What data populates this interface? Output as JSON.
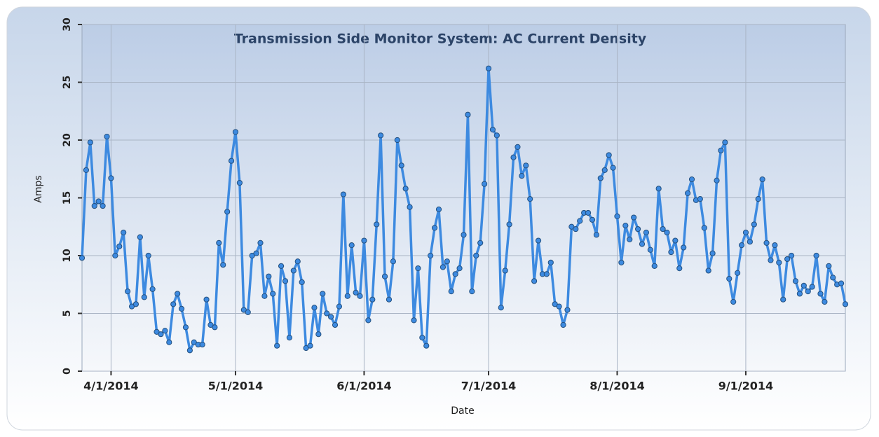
{
  "chart_data": {
    "type": "line",
    "title": "Transmission Side Monitor System: AC Current Density",
    "xlabel": "Date",
    "ylabel": "Amps",
    "color": "#3d8ae0",
    "grid": true,
    "xlim": [
      "3/25/2014",
      "9/25/2014"
    ],
    "xticks": [
      "4/1/2014",
      "5/1/2014",
      "6/1/2014",
      "7/1/2014",
      "8/1/2014",
      "9/1/2014"
    ],
    "ylim": [
      0,
      30
    ],
    "yticks": [
      0,
      5,
      10,
      15,
      20,
      25,
      30
    ],
    "x": [
      "3/25/2014",
      "3/26/2014",
      "3/27/2014",
      "3/28/2014",
      "3/29/2014",
      "3/30/2014",
      "3/31/2014",
      "4/1/2014",
      "4/2/2014",
      "4/3/2014",
      "4/4/2014",
      "4/5/2014",
      "4/6/2014",
      "4/7/2014",
      "4/8/2014",
      "4/9/2014",
      "4/10/2014",
      "4/11/2014",
      "4/12/2014",
      "4/13/2014",
      "4/14/2014",
      "4/15/2014",
      "4/16/2014",
      "4/17/2014",
      "4/18/2014",
      "4/19/2014",
      "4/20/2014",
      "4/21/2014",
      "4/22/2014",
      "4/23/2014",
      "4/24/2014",
      "4/25/2014",
      "4/26/2014",
      "4/27/2014",
      "4/28/2014",
      "4/29/2014",
      "4/30/2014",
      "5/1/2014",
      "5/2/2014",
      "5/3/2014",
      "5/4/2014",
      "5/5/2014",
      "5/6/2014",
      "5/7/2014",
      "5/8/2014",
      "5/9/2014",
      "5/10/2014",
      "5/11/2014",
      "5/12/2014",
      "5/13/2014",
      "5/14/2014",
      "5/15/2014",
      "5/16/2014",
      "5/17/2014",
      "5/18/2014",
      "5/19/2014",
      "5/20/2014",
      "5/21/2014",
      "5/22/2014",
      "5/23/2014",
      "5/24/2014",
      "5/25/2014",
      "5/26/2014",
      "5/27/2014",
      "5/28/2014",
      "5/29/2014",
      "5/30/2014",
      "5/31/2014",
      "6/1/2014",
      "6/2/2014",
      "6/3/2014",
      "6/4/2014",
      "6/5/2014",
      "6/6/2014",
      "6/7/2014",
      "6/8/2014",
      "6/9/2014",
      "6/10/2014",
      "6/11/2014",
      "6/12/2014",
      "6/13/2014",
      "6/14/2014",
      "6/15/2014",
      "6/16/2014",
      "6/17/2014",
      "6/18/2014",
      "6/19/2014",
      "6/20/2014",
      "6/21/2014",
      "6/22/2014",
      "6/23/2014",
      "6/24/2014",
      "6/25/2014",
      "6/26/2014",
      "6/27/2014",
      "6/28/2014",
      "6/29/2014",
      "6/30/2014",
      "7/1/2014",
      "7/2/2014",
      "7/3/2014",
      "7/4/2014",
      "7/5/2014",
      "7/6/2014",
      "7/7/2014",
      "7/8/2014",
      "7/9/2014",
      "7/10/2014",
      "7/11/2014",
      "7/12/2014",
      "7/13/2014",
      "7/14/2014",
      "7/15/2014",
      "7/16/2014",
      "7/17/2014",
      "7/18/2014",
      "7/19/2014",
      "7/20/2014",
      "7/21/2014",
      "7/22/2014",
      "7/23/2014",
      "7/24/2014",
      "7/25/2014",
      "7/26/2014",
      "7/27/2014",
      "7/28/2014",
      "7/29/2014",
      "7/30/2014",
      "7/31/2014",
      "8/1/2014",
      "8/2/2014",
      "8/3/2014",
      "8/4/2014",
      "8/5/2014",
      "8/6/2014",
      "8/7/2014",
      "8/8/2014",
      "8/9/2014",
      "8/10/2014",
      "8/11/2014",
      "8/12/2014",
      "8/13/2014",
      "8/14/2014",
      "8/15/2014",
      "8/16/2014",
      "8/17/2014",
      "8/18/2014",
      "8/19/2014",
      "8/20/2014",
      "8/21/2014",
      "8/22/2014",
      "8/23/2014",
      "8/24/2014",
      "8/25/2014",
      "8/26/2014",
      "8/27/2014",
      "8/28/2014",
      "8/29/2014",
      "8/30/2014",
      "8/31/2014",
      "9/1/2014",
      "9/2/2014",
      "9/3/2014",
      "9/4/2014",
      "9/5/2014",
      "9/6/2014",
      "9/7/2014",
      "9/8/2014",
      "9/9/2014",
      "9/10/2014",
      "9/11/2014",
      "9/12/2014",
      "9/13/2014",
      "9/14/2014",
      "9/15/2014",
      "9/16/2014",
      "9/17/2014",
      "9/18/2014",
      "9/19/2014",
      "9/20/2014",
      "9/21/2014",
      "9/22/2014",
      "9/23/2014",
      "9/24/2014",
      "9/25/2014"
    ],
    "values": [
      9.8,
      17.4,
      19.8,
      14.3,
      14.7,
      14.3,
      20.3,
      16.7,
      10.0,
      10.8,
      12.0,
      6.9,
      5.6,
      5.8,
      11.6,
      6.4,
      10.0,
      7.1,
      3.4,
      3.2,
      3.5,
      2.5,
      5.8,
      6.7,
      5.4,
      3.8,
      1.8,
      2.5,
      2.3,
      2.3,
      6.2,
      4.0,
      3.8,
      11.1,
      9.2,
      13.8,
      18.2,
      20.7,
      16.3,
      5.3,
      5.1,
      10.0,
      10.2,
      11.1,
      6.5,
      8.2,
      6.7,
      2.2,
      9.1,
      7.8,
      2.9,
      8.7,
      9.5,
      7.7,
      2.0,
      2.2,
      5.5,
      3.2,
      6.7,
      5.0,
      4.7,
      4.0,
      5.6,
      15.3,
      6.5,
      10.9,
      6.8,
      6.5,
      11.3,
      4.4,
      6.2,
      12.7,
      20.4,
      8.2,
      6.2,
      9.5,
      20.0,
      17.8,
      15.8,
      14.2,
      4.4,
      8.9,
      2.9,
      2.2,
      10.0,
      12.4,
      14.0,
      9.0,
      9.5,
      6.9,
      8.4,
      8.9,
      11.8,
      22.2,
      6.9,
      10.0,
      11.1,
      16.2,
      26.2,
      20.9,
      20.4,
      5.5,
      8.7,
      12.7,
      18.5,
      19.4,
      16.9,
      17.8,
      14.9,
      7.8,
      11.3,
      8.4,
      8.4,
      9.4,
      5.8,
      5.6,
      4.0,
      5.3,
      12.5,
      12.3,
      13.0,
      13.7,
      13.7,
      13.1,
      11.8,
      16.7,
      17.4,
      18.7,
      17.6,
      13.4,
      9.4,
      12.6,
      11.4,
      13.3,
      12.3,
      11.0,
      12.0,
      10.5,
      9.1,
      15.8,
      12.3,
      12.0,
      10.3,
      11.3,
      8.9,
      10.7,
      15.4,
      16.6,
      14.8,
      14.9,
      12.4,
      8.7,
      10.2,
      16.5,
      19.1,
      19.8,
      8.0,
      6.0,
      8.5,
      10.9,
      12.0,
      11.2,
      12.7,
      14.9,
      16.6,
      11.1,
      9.6,
      10.9,
      9.4,
      6.2,
      9.7,
      10.0,
      7.8,
      6.7,
      7.4,
      6.9,
      7.3,
      10.0,
      6.7,
      6.0,
      9.1,
      8.1,
      7.5,
      7.6,
      5.8
    ]
  }
}
